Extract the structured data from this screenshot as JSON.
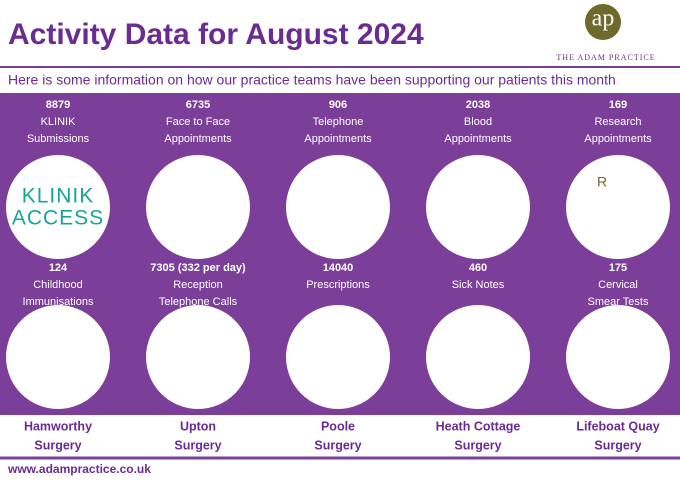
{
  "header": {
    "title": "Activity Data for August 2024",
    "subtitle": "Here is some information on how our practice teams have been supporting our patients this month",
    "logo_mark": "ap",
    "logo_text": "THE ADAM PRACTICE"
  },
  "stats": [
    {
      "value": "8879",
      "label": [
        "KLINIK",
        "Submissions"
      ],
      "icon_text": [
        "KLINIK",
        "ACCESS"
      ]
    },
    {
      "value": "6735",
      "label": [
        "Face to Face",
        "Appointments"
      ]
    },
    {
      "value": "906",
      "label": [
        "Telephone",
        "Appointments"
      ]
    },
    {
      "value": "2038",
      "label": [
        "Blood",
        "Appointments"
      ]
    },
    {
      "value": "169",
      "label": [
        "Research",
        "Appointments"
      ],
      "icon_text": [
        "R"
      ]
    },
    {
      "value": "124",
      "label": [
        "Childhood",
        "Immunisations"
      ]
    },
    {
      "value": "7305 (332 per day)",
      "label": [
        "Reception",
        "Telephone Calls"
      ]
    },
    {
      "value": "14040",
      "label": [
        "Prescriptions"
      ]
    },
    {
      "value": "460",
      "label": [
        "Sick Notes"
      ]
    },
    {
      "value": "175",
      "label": [
        "Cervical",
        "Smear Tests"
      ]
    }
  ],
  "surgeries": [
    [
      "Hamworthy",
      "Surgery"
    ],
    [
      "Upton",
      "Surgery"
    ],
    [
      "Poole",
      "Surgery"
    ],
    [
      "Heath Cottage",
      "Surgery"
    ],
    [
      "Lifeboat Quay",
      "Surgery"
    ]
  ],
  "footer": {
    "url": "www.adampractice.co.uk"
  }
}
